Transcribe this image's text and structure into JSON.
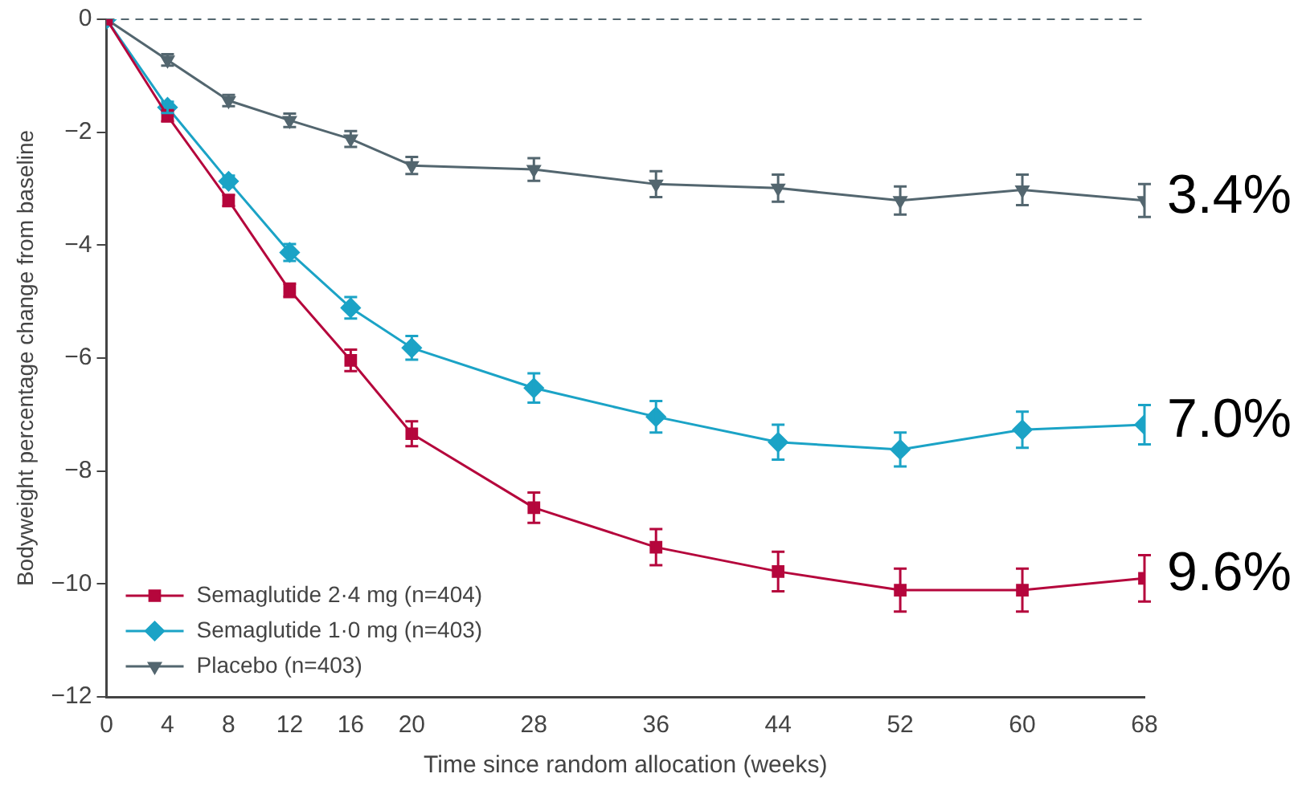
{
  "chart_data": {
    "type": "line",
    "xlabel": "Time since random allocation (weeks)",
    "ylabel": "Bodyweight percentage change from baseline",
    "xlim": [
      0,
      68
    ],
    "xticks": [
      0,
      4,
      8,
      12,
      16,
      20,
      28,
      36,
      44,
      52,
      60,
      68
    ],
    "ylim": [
      -12,
      0
    ],
    "yticks": [
      -12,
      -10,
      -8,
      -6,
      -4,
      -2,
      0
    ],
    "x": [
      0,
      4,
      8,
      12,
      16,
      20,
      28,
      36,
      44,
      52,
      60,
      68
    ],
    "grid": false,
    "legend": "bottom left",
    "line_style": "solid",
    "series": [
      {
        "name": "Semaglutide 2·4 mg (n=404)",
        "color": "#b5063c",
        "marker": "square",
        "values": [
          0,
          -1.71,
          -3.21,
          -4.8,
          -6.04,
          -7.34,
          -8.65,
          -9.35,
          -9.78,
          -10.11,
          -10.11,
          -9.9
        ],
        "errors": [
          null,
          0.1,
          0.1,
          0.12,
          0.19,
          0.22,
          0.27,
          0.32,
          0.35,
          0.38,
          0.38,
          0.41
        ]
      },
      {
        "name": "Semaglutide 1·0 mg (n=403)",
        "color": "#1ba3c6",
        "marker": "diamond",
        "values": [
          0,
          -1.56,
          -2.87,
          -4.13,
          -5.11,
          -5.82,
          -6.53,
          -7.04,
          -7.49,
          -7.62,
          -7.27,
          -7.18
        ],
        "errors": [
          null,
          0.1,
          0.1,
          0.15,
          0.19,
          0.21,
          0.26,
          0.28,
          0.31,
          0.3,
          0.32,
          0.35
        ]
      },
      {
        "name": "Placebo (n=403)",
        "color": "#53666f",
        "marker": "triangle",
        "values": [
          0,
          -0.72,
          -1.44,
          -1.79,
          -2.12,
          -2.59,
          -2.66,
          -2.92,
          -2.99,
          -3.21,
          -3.02,
          -3.21
        ],
        "errors": [
          null,
          0.1,
          0.1,
          0.12,
          0.14,
          0.15,
          0.2,
          0.23,
          0.24,
          0.25,
          0.27,
          0.29
        ]
      }
    ],
    "ref_lines": [
      {
        "axis": "y",
        "value": 0,
        "color": "#53666f",
        "line_style": "dashed"
      }
    ],
    "annotations": [
      "3.4%",
      "7.0%",
      "9.6%"
    ]
  }
}
